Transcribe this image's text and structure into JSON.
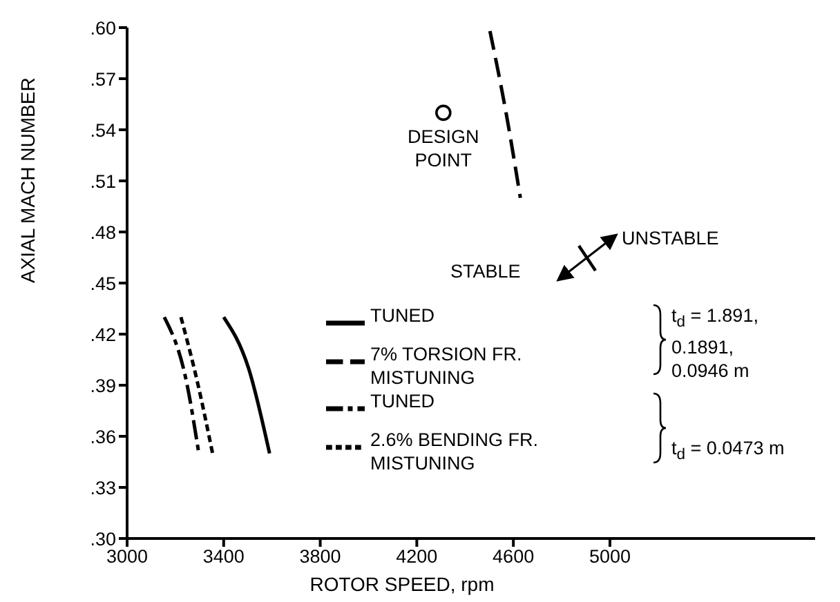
{
  "chart_data": {
    "type": "line",
    "xlabel": "ROTOR SPEED, rpm",
    "ylabel": "AXIAL MACH NUMBER",
    "xlim": [
      3000,
      5850
    ],
    "xticks": [
      3000,
      3400,
      3800,
      4200,
      4600,
      5000
    ],
    "ylim": [
      0.3,
      0.6
    ],
    "yticks": [
      {
        "value": 0.3,
        "label": ".30"
      },
      {
        "value": 0.33,
        "label": ".33"
      },
      {
        "value": 0.36,
        "label": ".36"
      },
      {
        "value": 0.39,
        "label": ".39"
      },
      {
        "value": 0.42,
        "label": ".42"
      },
      {
        "value": 0.45,
        "label": ".45"
      },
      {
        "value": 0.48,
        "label": ".48"
      },
      {
        "value": 0.51,
        "label": ".51"
      },
      {
        "value": 0.54,
        "label": ".54"
      },
      {
        "value": 0.57,
        "label": ".57"
      },
      {
        "value": 0.6,
        "label": ".60"
      }
    ],
    "series": [
      {
        "name": "TUNED",
        "color": "#000000",
        "line_style": "solid",
        "x": [
          3400,
          3503,
          3590
        ],
        "values": [
          0.43,
          0.4,
          0.35
        ]
      },
      {
        "name": "7% TORSION FR. MISTUNING",
        "color": "#000000",
        "line_style": "dashed",
        "x": [
          4503,
          4571,
          4629
        ],
        "values": [
          0.598,
          0.549,
          0.5
        ]
      },
      {
        "name": "TUNED",
        "color": "#000000",
        "line_style": "dashdot",
        "x": [
          3154,
          3246,
          3297
        ],
        "values": [
          0.43,
          0.392,
          0.35
        ]
      },
      {
        "name": "2.6% BENDING FR. MISTUNING",
        "color": "#000000",
        "line_style": "dotted",
        "x": [
          3223,
          3291,
          3354
        ],
        "values": [
          0.43,
          0.392,
          0.35
        ]
      },
      {
        "name": "DESIGN POINT",
        "type": "scatter",
        "marker": "circle",
        "color": "#000000",
        "x": [
          4310
        ],
        "values": [
          0.55
        ]
      }
    ],
    "annotations": [
      "STABLE",
      "UNSTABLE",
      "t$_{d}$ = 1.891, 0.1891, 0.0946 m",
      "t$_{d}$ = 0.0473 m"
    ],
    "legend": "bottom",
    "grid": false
  }
}
